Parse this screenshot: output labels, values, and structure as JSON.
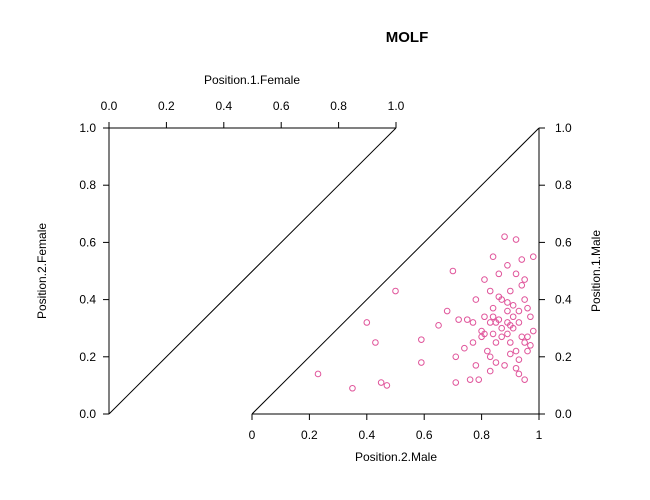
{
  "chart_data": {
    "type": "scatter",
    "title": "MOLF",
    "marker_color": "#e0559b",
    "marker_shape": "open-circle",
    "female_panel": {
      "top_axis_label": "Position.1.Female",
      "left_axis_label": "Position.2.Female",
      "top_ticks": [
        "0.0",
        "0.2",
        "0.4",
        "0.6",
        "0.8",
        "1.0"
      ],
      "left_ticks": [
        "0.0",
        "0.2",
        "0.4",
        "0.6",
        "0.8",
        "1.0"
      ],
      "xlim": [
        0,
        1
      ],
      "ylim": [
        0,
        1
      ],
      "points": []
    },
    "male_panel": {
      "bottom_axis_label": "Position.2.Male",
      "right_axis_label": "Position.1.Male",
      "bottom_ticks": [
        "0",
        "0.2",
        "0.4",
        "0.6",
        "0.8",
        "1"
      ],
      "right_ticks": [
        "0.0",
        "0.2",
        "0.4",
        "0.6",
        "0.8",
        "1.0"
      ],
      "xlim": [
        0,
        1
      ],
      "ylim": [
        0,
        1
      ],
      "x_field": "Position.2.Male",
      "y_field": "Position.1.Male",
      "points": [
        [
          0.23,
          0.14
        ],
        [
          0.35,
          0.09
        ],
        [
          0.4,
          0.32
        ],
        [
          0.43,
          0.25
        ],
        [
          0.45,
          0.11
        ],
        [
          0.47,
          0.1
        ],
        [
          0.5,
          0.43
        ],
        [
          0.59,
          0.18
        ],
        [
          0.59,
          0.26
        ],
        [
          0.65,
          0.31
        ],
        [
          0.68,
          0.36
        ],
        [
          0.7,
          0.5
        ],
        [
          0.71,
          0.2
        ],
        [
          0.71,
          0.11
        ],
        [
          0.72,
          0.33
        ],
        [
          0.74,
          0.23
        ],
        [
          0.75,
          0.33
        ],
        [
          0.76,
          0.12
        ],
        [
          0.77,
          0.25
        ],
        [
          0.77,
          0.32
        ],
        [
          0.78,
          0.4
        ],
        [
          0.78,
          0.17
        ],
        [
          0.79,
          0.12
        ],
        [
          0.8,
          0.27
        ],
        [
          0.8,
          0.29
        ],
        [
          0.81,
          0.47
        ],
        [
          0.81,
          0.28
        ],
        [
          0.81,
          0.34
        ],
        [
          0.82,
          0.22
        ],
        [
          0.83,
          0.43
        ],
        [
          0.83,
          0.32
        ],
        [
          0.83,
          0.2
        ],
        [
          0.83,
          0.15
        ],
        [
          0.84,
          0.55
        ],
        [
          0.84,
          0.37
        ],
        [
          0.84,
          0.34
        ],
        [
          0.84,
          0.28
        ],
        [
          0.85,
          0.32
        ],
        [
          0.85,
          0.25
        ],
        [
          0.85,
          0.18
        ],
        [
          0.86,
          0.41
        ],
        [
          0.86,
          0.33
        ],
        [
          0.86,
          0.49
        ],
        [
          0.87,
          0.4
        ],
        [
          0.87,
          0.3
        ],
        [
          0.87,
          0.27
        ],
        [
          0.88,
          0.62
        ],
        [
          0.88,
          0.17
        ],
        [
          0.89,
          0.52
        ],
        [
          0.89,
          0.39
        ],
        [
          0.89,
          0.36
        ],
        [
          0.89,
          0.32
        ],
        [
          0.89,
          0.28
        ],
        [
          0.9,
          0.43
        ],
        [
          0.9,
          0.31
        ],
        [
          0.9,
          0.25
        ],
        [
          0.9,
          0.21
        ],
        [
          0.91,
          0.38
        ],
        [
          0.91,
          0.34
        ],
        [
          0.91,
          0.3
        ],
        [
          0.92,
          0.61
        ],
        [
          0.92,
          0.49
        ],
        [
          0.92,
          0.22
        ],
        [
          0.92,
          0.16
        ],
        [
          0.93,
          0.36
        ],
        [
          0.93,
          0.32
        ],
        [
          0.93,
          0.19
        ],
        [
          0.93,
          0.14
        ],
        [
          0.94,
          0.54
        ],
        [
          0.94,
          0.45
        ],
        [
          0.94,
          0.27
        ],
        [
          0.95,
          0.47
        ],
        [
          0.95,
          0.4
        ],
        [
          0.95,
          0.25
        ],
        [
          0.95,
          0.12
        ],
        [
          0.96,
          0.37
        ],
        [
          0.96,
          0.27
        ],
        [
          0.96,
          0.22
        ],
        [
          0.97,
          0.34
        ],
        [
          0.97,
          0.24
        ],
        [
          0.98,
          0.29
        ],
        [
          0.98,
          0.55
        ]
      ]
    }
  }
}
